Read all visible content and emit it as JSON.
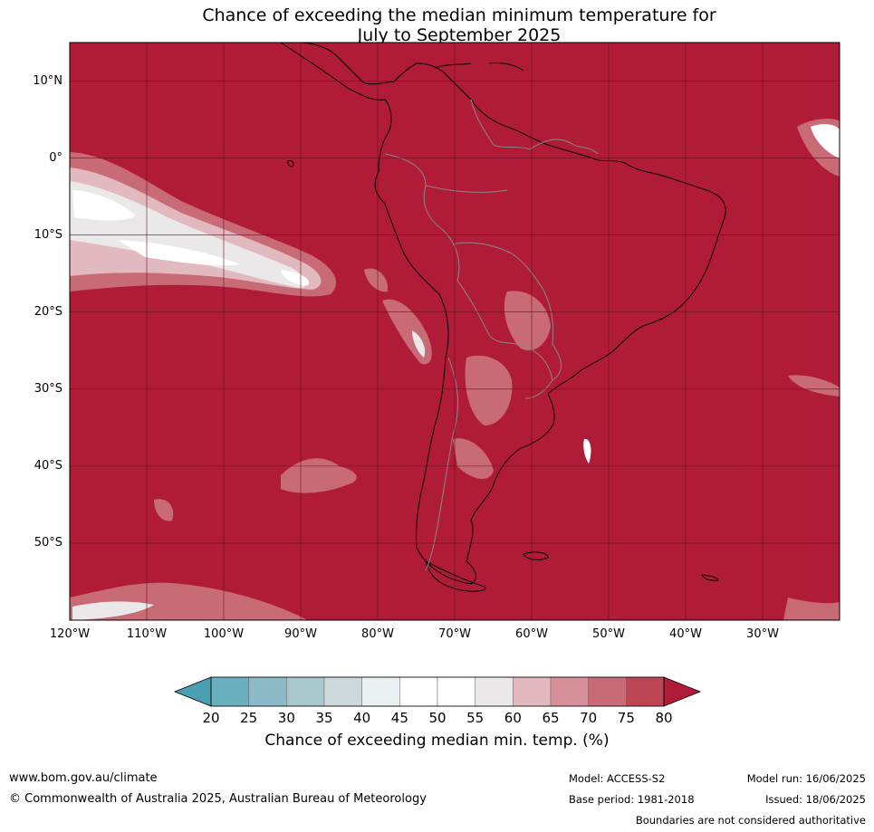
{
  "title": {
    "line1": "Chance of exceeding the median minimum temperature for",
    "line2": "July to September 2025"
  },
  "map": {
    "projection": "lat-lon",
    "lon_range": [
      -120,
      -20
    ],
    "lat_range": [
      -60,
      15
    ],
    "lat_labels": [
      "10°N",
      "0°",
      "10°S",
      "20°S",
      "30°S",
      "40°S",
      "50°S"
    ],
    "lon_labels": [
      "120°W",
      "110°W",
      "100°W",
      "90°W",
      "80°W",
      "70°W",
      "60°W",
      "50°W",
      "40°W",
      "30°W"
    ],
    "lat_values": [
      10,
      0,
      -10,
      -20,
      -30,
      -40,
      -50
    ],
    "lon_values": [
      -120,
      -110,
      -100,
      -90,
      -80,
      -70,
      -60,
      -50,
      -40,
      -30
    ],
    "background_color": "#b01b37",
    "grid": true
  },
  "colorbar": {
    "ticks": [
      "20",
      "25",
      "30",
      "35",
      "40",
      "45",
      "50",
      "55",
      "60",
      "65",
      "70",
      "75",
      "80"
    ],
    "colors": [
      "#6aafbe",
      "#8cb9c6",
      "#a9c8ce",
      "#cfd9dc",
      "#e9f0f2",
      "#ffffff",
      "#ffffff",
      "#ebe8e9",
      "#e2b9bf",
      "#d48f98",
      "#c86b76",
      "#bd4655"
    ],
    "low_extend_color": "#4aa0b2",
    "high_extend_color": "#b01b37",
    "label": "Chance of exceeding median min. temp. (%)"
  },
  "footer": {
    "website": "www.bom.gov.au/climate",
    "copyright": "© Commonwealth of Australia 2025, Australian Bureau of Meteorology",
    "model": "Model: ACCESS-S2",
    "base_period": "Base period: 1981-2018",
    "model_run": "Model run: 16/06/2025",
    "issued": "Issued: 18/06/2025",
    "disclaimer": "Boundaries are not considered authoritative"
  }
}
